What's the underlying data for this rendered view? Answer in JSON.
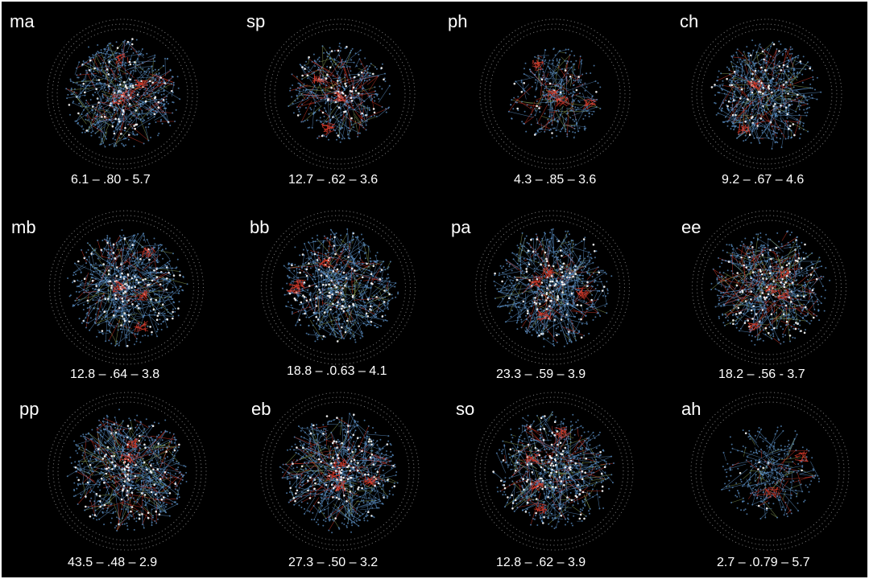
{
  "colors": {
    "background": "#000000",
    "node_blue": "#5b8fc4",
    "node_white": "#f2f2f2",
    "edge_red": "#d43a2a",
    "edge_green": "#8da35a",
    "boundary_dots": "#cfcfcf"
  },
  "panels": [
    {
      "name": "ma",
      "stats": "6.1 – .80 - 5.7"
    },
    {
      "name": "sp",
      "stats": "12.7 – .62 – 3.6"
    },
    {
      "name": "ph",
      "stats": "4.3 – .85 – 3.6"
    },
    {
      "name": "ch",
      "stats": "9.2 – .67 – 4.6"
    },
    {
      "name": "mb",
      "stats": "12.8 – .64 – 3.8"
    },
    {
      "name": "bb",
      "stats": "18.8 – .0.63 – 4.1"
    },
    {
      "name": "pa",
      "stats": "23.3 – .59 – 3.9"
    },
    {
      "name": "ee",
      "stats": "18.2 – .56 - 3.7"
    },
    {
      "name": "pp",
      "stats": "43.5 – .48 – 2.9"
    },
    {
      "name": "eb",
      "stats": "27.3 – .50 – 3.2"
    },
    {
      "name": "so",
      "stats": "12.8 – .62 – 3.9"
    },
    {
      "name": "ah",
      "stats": "2.7 – .0.79 – 5.7"
    }
  ]
}
